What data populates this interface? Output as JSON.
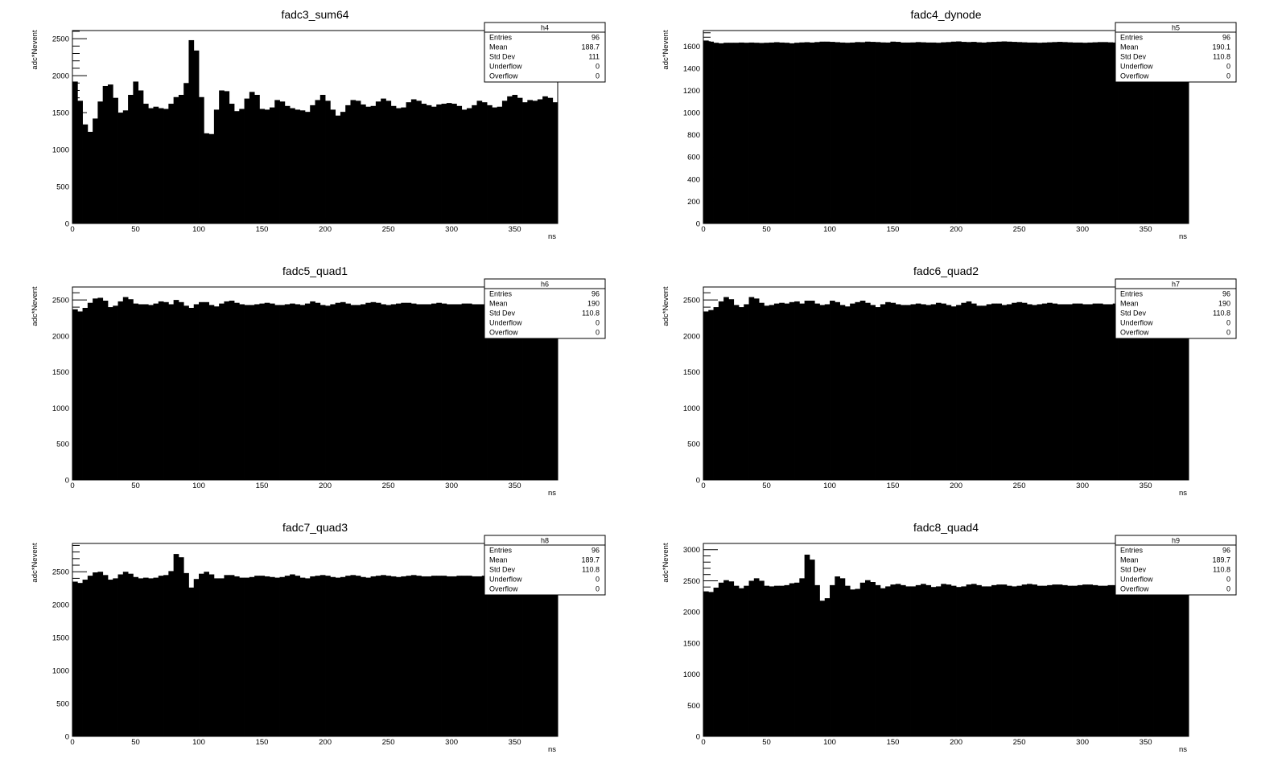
{
  "canvas": {
    "title": "",
    "background": "#ffffff"
  },
  "chart_data": [
    {
      "type": "bar",
      "title": "fadc3_sum64",
      "xlabel": "ns",
      "ylabel": "adc*Nevent",
      "xlim": [
        0,
        384
      ],
      "ylim": [
        0,
        2610
      ],
      "bin_width": 4,
      "xticks": [
        0,
        50,
        100,
        150,
        200,
        250,
        300,
        350
      ],
      "yticks": [
        0,
        500,
        1000,
        1500,
        2000,
        2500
      ],
      "values": [
        1920,
        1660,
        1340,
        1240,
        1420,
        1650,
        1860,
        1880,
        1700,
        1500,
        1530,
        1740,
        1920,
        1800,
        1620,
        1560,
        1580,
        1560,
        1550,
        1620,
        1710,
        1740,
        1900,
        2480,
        2340,
        1710,
        1220,
        1210,
        1540,
        1800,
        1790,
        1620,
        1520,
        1550,
        1690,
        1780,
        1740,
        1550,
        1540,
        1570,
        1670,
        1650,
        1590,
        1560,
        1540,
        1530,
        1510,
        1600,
        1670,
        1740,
        1660,
        1540,
        1460,
        1510,
        1600,
        1670,
        1660,
        1610,
        1580,
        1590,
        1650,
        1690,
        1660,
        1590,
        1560,
        1570,
        1640,
        1680,
        1660,
        1620,
        1600,
        1580,
        1610,
        1620,
        1630,
        1620,
        1590,
        1540,
        1560,
        1600,
        1660,
        1640,
        1600,
        1570,
        1580,
        1660,
        1720,
        1740,
        1700,
        1640,
        1670,
        1660,
        1680,
        1720,
        1700,
        1640
      ],
      "color": "#000000",
      "stats": {
        "name": "h4",
        "rows": [
          {
            "label": "Entries",
            "value": "96"
          },
          {
            "label": "Mean",
            "value": "188.7"
          },
          {
            "label": "Std Dev",
            "value": "111"
          },
          {
            "label": "Underflow",
            "value": "0"
          },
          {
            "label": "Overflow",
            "value": "0"
          }
        ]
      }
    },
    {
      "type": "bar",
      "title": "fadc4_dynode",
      "xlabel": "ns",
      "ylabel": "adc*Nevent",
      "xlim": [
        0,
        384
      ],
      "ylim": [
        0,
        1740
      ],
      "bin_width": 4,
      "xticks": [
        0,
        50,
        100,
        150,
        200,
        250,
        300,
        350
      ],
      "yticks": [
        0,
        200,
        400,
        600,
        800,
        1000,
        1200,
        1400,
        1600
      ],
      "values": [
        1650,
        1640,
        1630,
        1625,
        1630,
        1630,
        1630,
        1632,
        1630,
        1632,
        1630,
        1628,
        1630,
        1632,
        1635,
        1632,
        1630,
        1625,
        1630,
        1633,
        1635,
        1632,
        1636,
        1640,
        1640,
        1638,
        1635,
        1632,
        1630,
        1632,
        1636,
        1635,
        1640,
        1638,
        1636,
        1633,
        1632,
        1640,
        1638,
        1632,
        1632,
        1633,
        1636,
        1634,
        1632,
        1632,
        1630,
        1634,
        1636,
        1640,
        1642,
        1638,
        1636,
        1638,
        1634,
        1632,
        1636,
        1638,
        1640,
        1642,
        1640,
        1638,
        1636,
        1634,
        1632,
        1632,
        1630,
        1632,
        1634,
        1636,
        1638,
        1636,
        1634,
        1632,
        1632,
        1630,
        1632,
        1634,
        1636,
        1636,
        1634,
        1632,
        1632,
        1632,
        1634,
        1634,
        1636,
        1636,
        1634,
        1632,
        1634,
        1634,
        1636,
        1636,
        1634,
        1632
      ],
      "color": "#000000",
      "stats": {
        "name": "h5",
        "rows": [
          {
            "label": "Entries",
            "value": "96"
          },
          {
            "label": "Mean",
            "value": "190.1"
          },
          {
            "label": "Std Dev",
            "value": "110.8"
          },
          {
            "label": "Underflow",
            "value": "0"
          },
          {
            "label": "Overflow",
            "value": "0"
          }
        ]
      }
    },
    {
      "type": "bar",
      "title": "fadc5_quad1",
      "xlabel": "ns",
      "ylabel": "adc*Nevent",
      "xlim": [
        0,
        384
      ],
      "ylim": [
        0,
        2680
      ],
      "bin_width": 4,
      "xticks": [
        0,
        50,
        100,
        150,
        200,
        250,
        300,
        350
      ],
      "yticks": [
        0,
        500,
        1000,
        1500,
        2000,
        2500
      ],
      "values": [
        2370,
        2340,
        2390,
        2460,
        2520,
        2530,
        2490,
        2400,
        2420,
        2480,
        2540,
        2510,
        2450,
        2440,
        2440,
        2430,
        2450,
        2480,
        2470,
        2440,
        2500,
        2470,
        2420,
        2390,
        2440,
        2470,
        2470,
        2430,
        2410,
        2450,
        2480,
        2490,
        2460,
        2440,
        2430,
        2430,
        2440,
        2450,
        2460,
        2450,
        2430,
        2430,
        2440,
        2450,
        2440,
        2430,
        2450,
        2480,
        2460,
        2430,
        2420,
        2440,
        2460,
        2470,
        2450,
        2430,
        2430,
        2440,
        2460,
        2470,
        2460,
        2440,
        2430,
        2440,
        2450,
        2460,
        2460,
        2450,
        2440,
        2440,
        2440,
        2450,
        2460,
        2450,
        2440,
        2440,
        2440,
        2450,
        2450,
        2440,
        2440,
        2440,
        2450,
        2450,
        2440,
        2440,
        2440,
        2450,
        2450,
        2440,
        2440,
        2440,
        2450,
        2450,
        2440,
        2440
      ],
      "color": "#000000",
      "stats": {
        "name": "h6",
        "rows": [
          {
            "label": "Entries",
            "value": "96"
          },
          {
            "label": "Mean",
            "value": "190"
          },
          {
            "label": "Std Dev",
            "value": "110.8"
          },
          {
            "label": "Underflow",
            "value": "0"
          },
          {
            "label": "Overflow",
            "value": "0"
          }
        ]
      }
    },
    {
      "type": "bar",
      "title": "fadc6_quad2",
      "xlabel": "ns",
      "ylabel": "adc*Nevent",
      "xlim": [
        0,
        384
      ],
      "ylim": [
        0,
        2680
      ],
      "bin_width": 4,
      "xticks": [
        0,
        50,
        100,
        150,
        200,
        250,
        300,
        350
      ],
      "yticks": [
        0,
        500,
        1000,
        1500,
        2000,
        2500
      ],
      "values": [
        2340,
        2360,
        2400,
        2480,
        2540,
        2510,
        2430,
        2400,
        2440,
        2540,
        2520,
        2460,
        2420,
        2430,
        2450,
        2460,
        2450,
        2470,
        2480,
        2450,
        2490,
        2490,
        2450,
        2430,
        2440,
        2490,
        2470,
        2430,
        2410,
        2450,
        2470,
        2490,
        2460,
        2430,
        2400,
        2440,
        2470,
        2460,
        2440,
        2430,
        2430,
        2440,
        2450,
        2440,
        2430,
        2440,
        2460,
        2450,
        2430,
        2410,
        2430,
        2460,
        2480,
        2450,
        2420,
        2420,
        2440,
        2450,
        2450,
        2430,
        2440,
        2460,
        2470,
        2460,
        2440,
        2430,
        2440,
        2450,
        2460,
        2450,
        2440,
        2440,
        2440,
        2450,
        2450,
        2440,
        2440,
        2450,
        2450,
        2440,
        2440,
        2450,
        2460,
        2450,
        2440,
        2430,
        2440,
        2450,
        2450,
        2440,
        2440,
        2450,
        2450,
        2440,
        2440,
        2440
      ],
      "color": "#000000",
      "stats": {
        "name": "h7",
        "rows": [
          {
            "label": "Entries",
            "value": "96"
          },
          {
            "label": "Mean",
            "value": "190"
          },
          {
            "label": "Std Dev",
            "value": "110.8"
          },
          {
            "label": "Underflow",
            "value": "0"
          },
          {
            "label": "Overflow",
            "value": "0"
          }
        ]
      }
    },
    {
      "type": "bar",
      "title": "fadc7_quad3",
      "xlabel": "ns",
      "ylabel": "adc*Nevent",
      "xlim": [
        0,
        384
      ],
      "ylim": [
        0,
        2930
      ],
      "bin_width": 4,
      "xticks": [
        0,
        50,
        100,
        150,
        200,
        250,
        300,
        350
      ],
      "yticks": [
        0,
        500,
        1000,
        1500,
        2000,
        2500
      ],
      "values": [
        2350,
        2330,
        2380,
        2440,
        2490,
        2500,
        2450,
        2380,
        2400,
        2460,
        2500,
        2470,
        2420,
        2400,
        2410,
        2400,
        2410,
        2440,
        2450,
        2510,
        2770,
        2720,
        2480,
        2260,
        2390,
        2470,
        2500,
        2460,
        2400,
        2400,
        2450,
        2450,
        2430,
        2410,
        2410,
        2420,
        2440,
        2440,
        2430,
        2420,
        2410,
        2420,
        2440,
        2460,
        2440,
        2410,
        2400,
        2430,
        2440,
        2450,
        2440,
        2420,
        2410,
        2420,
        2440,
        2450,
        2440,
        2420,
        2410,
        2430,
        2440,
        2450,
        2440,
        2430,
        2420,
        2430,
        2440,
        2450,
        2440,
        2430,
        2430,
        2440,
        2440,
        2440,
        2430,
        2430,
        2440,
        2440,
        2440,
        2430,
        2430,
        2440,
        2440,
        2440,
        2430,
        2430,
        2440,
        2440,
        2430,
        2430,
        2430,
        2440,
        2440,
        2430,
        2430,
        2430
      ],
      "color": "#000000",
      "stats": {
        "name": "h8",
        "rows": [
          {
            "label": "Entries",
            "value": "96"
          },
          {
            "label": "Mean",
            "value": "189.7"
          },
          {
            "label": "Std Dev",
            "value": "110.8"
          },
          {
            "label": "Underflow",
            "value": "0"
          },
          {
            "label": "Overflow",
            "value": "0"
          }
        ]
      }
    },
    {
      "type": "bar",
      "title": "fadc8_quad4",
      "xlabel": "ns",
      "ylabel": "adc*Nevent",
      "xlim": [
        0,
        384
      ],
      "ylim": [
        0,
        3100
      ],
      "bin_width": 4,
      "xticks": [
        0,
        50,
        100,
        150,
        200,
        250,
        300,
        350
      ],
      "yticks": [
        0,
        500,
        1000,
        1500,
        2000,
        2500,
        3000
      ],
      "values": [
        2330,
        2320,
        2390,
        2470,
        2510,
        2490,
        2420,
        2380,
        2420,
        2500,
        2540,
        2500,
        2420,
        2410,
        2420,
        2420,
        2430,
        2460,
        2470,
        2540,
        2920,
        2840,
        2430,
        2180,
        2220,
        2430,
        2570,
        2540,
        2420,
        2360,
        2370,
        2470,
        2510,
        2480,
        2430,
        2380,
        2410,
        2440,
        2450,
        2430,
        2410,
        2410,
        2430,
        2450,
        2430,
        2400,
        2410,
        2450,
        2440,
        2420,
        2400,
        2410,
        2440,
        2450,
        2430,
        2410,
        2410,
        2430,
        2440,
        2440,
        2420,
        2410,
        2420,
        2440,
        2450,
        2440,
        2420,
        2420,
        2430,
        2440,
        2440,
        2430,
        2420,
        2420,
        2430,
        2440,
        2440,
        2430,
        2420,
        2420,
        2430,
        2430,
        2430,
        2430,
        2420,
        2420,
        2430,
        2430,
        2430,
        2420,
        2420,
        2430,
        2430,
        2430,
        2420,
        2420
      ],
      "color": "#000000",
      "stats": {
        "name": "h9",
        "rows": [
          {
            "label": "Entries",
            "value": "96"
          },
          {
            "label": "Mean",
            "value": "189.7"
          },
          {
            "label": "Std Dev",
            "value": "110.8"
          },
          {
            "label": "Underflow",
            "value": "0"
          },
          {
            "label": "Overflow",
            "value": "0"
          }
        ]
      }
    }
  ]
}
